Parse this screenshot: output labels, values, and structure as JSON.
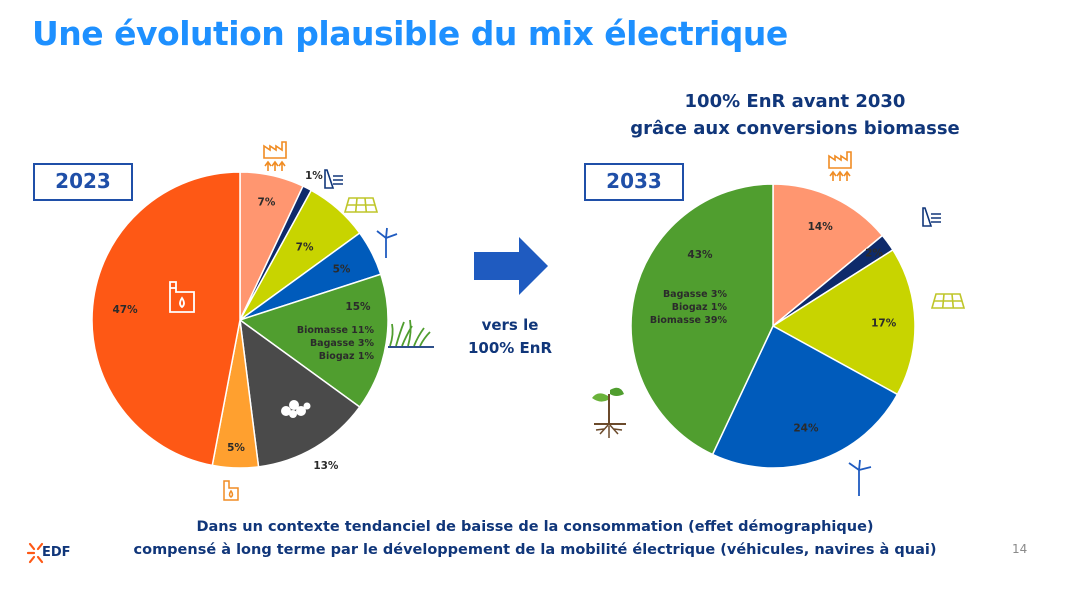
{
  "title": "Une évolution plausible du mix électrique",
  "subtitle": [
    "100% EnR avant 2030",
    "grâce aux conversions biomasse"
  ],
  "arrow_label": [
    "vers le",
    "100% EnR"
  ],
  "footer": [
    "Dans un contexte tendanciel de baisse de la consommation (effet démographique)",
    "compensé à long terme par le développement de la mobilité électrique (véhicules, navires à quai)"
  ],
  "page_number": "14",
  "logo_text": "EDF",
  "colors": {
    "title": "#1E90FF",
    "dark_blue": "#10367A",
    "frame": "#1F4FA8"
  },
  "chart_data": [
    {
      "type": "pie",
      "title": "2023",
      "slices": [
        {
          "label": "7%",
          "value": 7,
          "color": "#FF9670",
          "icon": "factory-heat-icon"
        },
        {
          "label": "1%",
          "value": 1,
          "color": "#0E2A6B",
          "icon": "hydro-dam-icon"
        },
        {
          "label": "7%",
          "value": 7,
          "color": "#C8D400",
          "icon": "solar-panel-icon"
        },
        {
          "label": "5%",
          "value": 5,
          "color": "#005BBB",
          "icon": "wind-turbine-icon"
        },
        {
          "label": "15%",
          "value": 15,
          "color": "#509E2F",
          "icon": "grass-icon",
          "details": [
            "Biomasse 11%",
            "Bagasse 3%",
            "Biogaz 1%"
          ]
        },
        {
          "label": "13%",
          "value": 13,
          "color": "#4A4A4A",
          "icon": "coal-icon"
        },
        {
          "label": "5%",
          "value": 5,
          "color": "#FFA02F",
          "icon": "fuel-tank-small-icon"
        },
        {
          "label": "47%",
          "value": 47,
          "color": "#FE5815",
          "icon": "fuel-tank-icon"
        }
      ]
    },
    {
      "type": "pie",
      "title": "2033",
      "slices": [
        {
          "label": "14%",
          "value": 14,
          "color": "#FF9670",
          "icon": "factory-heat-icon"
        },
        {
          "label": "2%",
          "value": 2,
          "color": "#0E2A6B",
          "icon": "hydro-dam-icon"
        },
        {
          "label": "17%",
          "value": 17,
          "color": "#C8D400",
          "icon": "solar-panel-icon"
        },
        {
          "label": "24%",
          "value": 24,
          "color": "#005BBB",
          "icon": "wind-turbine-icon"
        },
        {
          "label": "43%",
          "value": 43,
          "color": "#509E2F",
          "icon": "sprout-icon",
          "details": [
            "Bagasse 3%",
            "Biogaz 1%",
            "Biomasse 39%"
          ]
        }
      ]
    }
  ]
}
